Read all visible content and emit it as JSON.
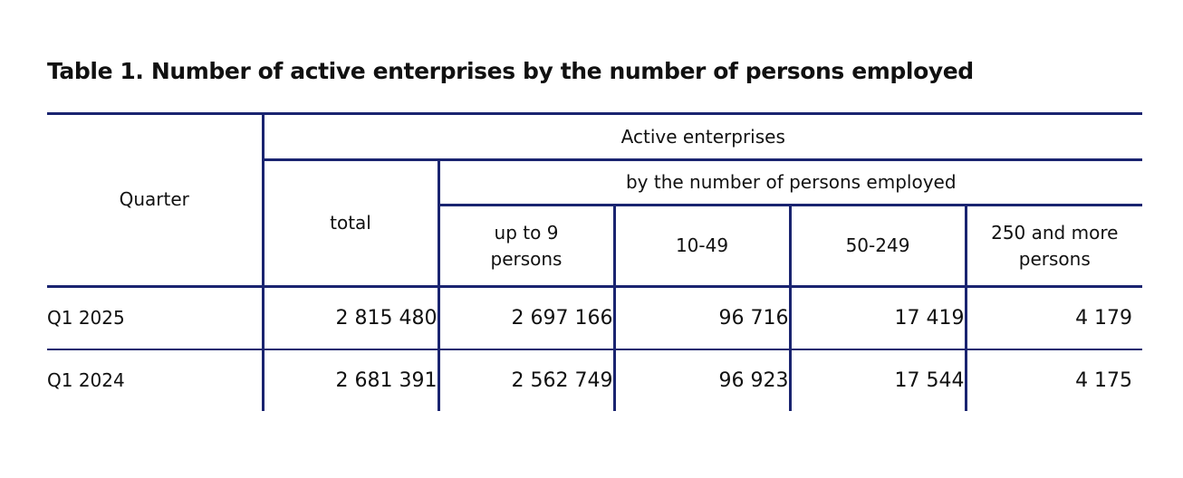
{
  "title": "Table 1. Number of active enterprises by the number of persons employed",
  "header": {
    "quarter": "Quarter",
    "group": "Active enterprises",
    "subgroup": "by the number of persons employed",
    "total": "total",
    "up_to_9": "up to 9 persons",
    "r10_49": "10-49",
    "r50_249": "50-249",
    "r250_more": "250 and more persons"
  },
  "rows": [
    {
      "quarter": "Q1 2025",
      "total": "2 815 480",
      "up_to_9": "2 697 166",
      "r10_49": "96 716",
      "r50_249": "17 419",
      "r250_more": "4 179"
    },
    {
      "quarter": "Q1 2024",
      "total": "2 681 391",
      "up_to_9": "2 562 749",
      "r10_49": "96 923",
      "r50_249": "17 544",
      "r250_more": "4 175"
    }
  ],
  "colors": {
    "rule": "#1a2470",
    "text": "#111111"
  }
}
